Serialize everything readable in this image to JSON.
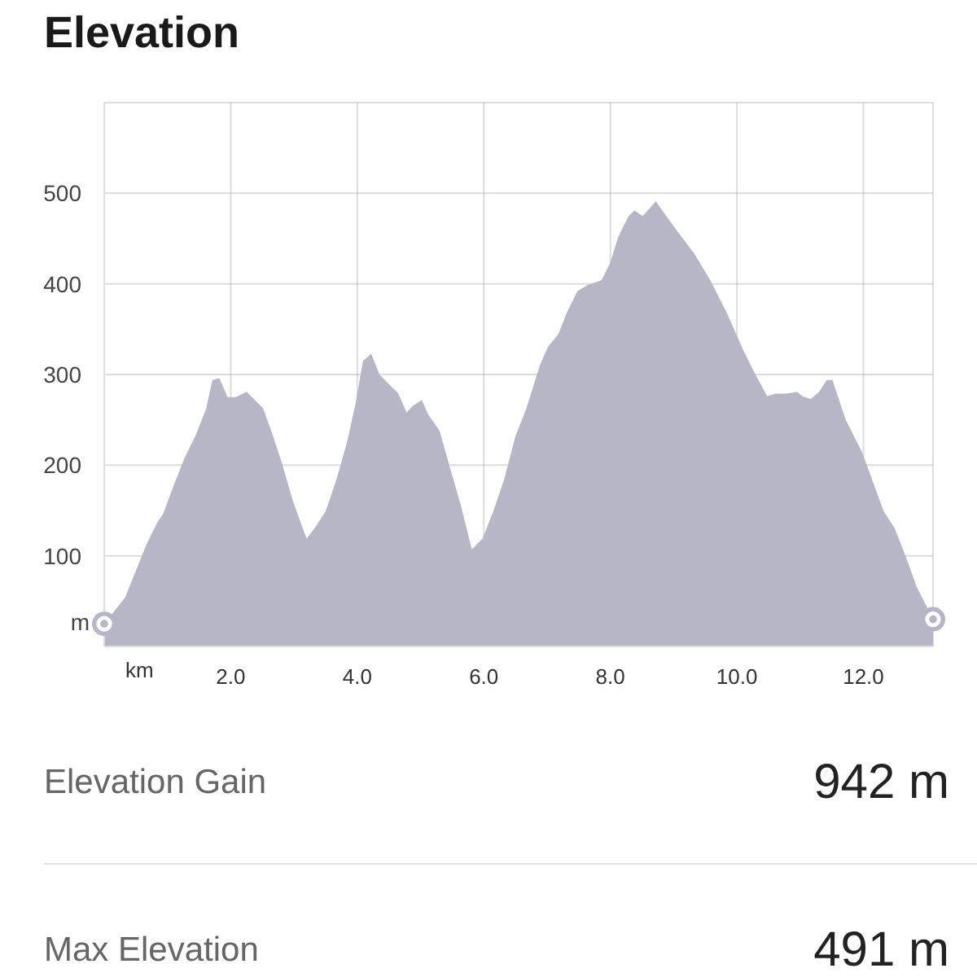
{
  "chart_data": {
    "type": "area",
    "title": "Elevation",
    "xlabel": "km",
    "ylabel": "m",
    "series": [
      {
        "color": "#b7b6c6",
        "x": [
          0,
          0.33,
          0.67,
          0.84,
          0.93,
          1.1,
          1.27,
          1.44,
          1.61,
          1.71,
          1.82,
          1.95,
          2.08,
          2.25,
          2.38,
          2.51,
          2.64,
          2.81,
          2.98,
          3.15,
          3.2,
          3.33,
          3.5,
          3.67,
          3.84,
          3.97,
          4.09,
          4.22,
          4.35,
          4.52,
          4.65,
          4.78,
          4.87,
          5.02,
          5.12,
          5.3,
          5.47,
          5.64,
          5.81,
          5.98,
          6.15,
          6.32,
          6.5,
          6.67,
          6.88,
          7.01,
          7.18,
          7.31,
          7.48,
          7.65,
          7.86,
          7.99,
          8.12,
          8.29,
          8.38,
          8.51,
          8.59,
          8.72,
          8.85,
          9.07,
          9.32,
          9.58,
          9.84,
          10.1,
          10.27,
          10.48,
          10.61,
          10.78,
          10.95,
          11.04,
          11.17,
          11.3,
          11.42,
          11.51,
          11.72,
          11.98,
          12.32,
          12.49,
          12.66,
          12.84,
          13.1
        ],
        "values": [
          25,
          54,
          113,
          137,
          146,
          178,
          208,
          232,
          262,
          294,
          296,
          275,
          275,
          281,
          272,
          263,
          238,
          202,
          161,
          128,
          119,
          131,
          149,
          184,
          226,
          267,
          315,
          323,
          300,
          288,
          279,
          258,
          265,
          272,
          256,
          238,
          196,
          155,
          107,
          119,
          149,
          184,
          232,
          262,
          309,
          330,
          345,
          368,
          392,
          399,
          404,
          422,
          451,
          475,
          481,
          475,
          481,
          491,
          478,
          457,
          434,
          404,
          368,
          327,
          303,
          276,
          279,
          279,
          281,
          276,
          273,
          281,
          294,
          294,
          250,
          214,
          149,
          131,
          101,
          66,
          30
        ]
      },
      {
        "type": "scatter",
        "color": "#b7b6c6",
        "marker": "circle",
        "x": [
          0,
          13.1
        ],
        "values": [
          25,
          30
        ]
      }
    ],
    "xlim": [
      0,
      13.1
    ],
    "xticks": [
      {
        "value": 0,
        "label": null
      },
      {
        "value": 2,
        "label": "2.0"
      },
      {
        "value": 4,
        "label": "4.0"
      },
      {
        "value": 6,
        "label": "6.0"
      },
      {
        "value": 8,
        "label": "8.0"
      },
      {
        "value": 10,
        "label": "10.0"
      },
      {
        "value": 12,
        "label": "12.0"
      }
    ],
    "ylim": [
      0,
      600
    ],
    "yticks": [
      {
        "value": 0,
        "label": null
      },
      100,
      200,
      300,
      400,
      500,
      {
        "value": 600,
        "label": null
      }
    ],
    "grid": true,
    "annotations": [
      "Elevation Gain",
      "942 m",
      "Max Elevation",
      "491 m"
    ]
  }
}
